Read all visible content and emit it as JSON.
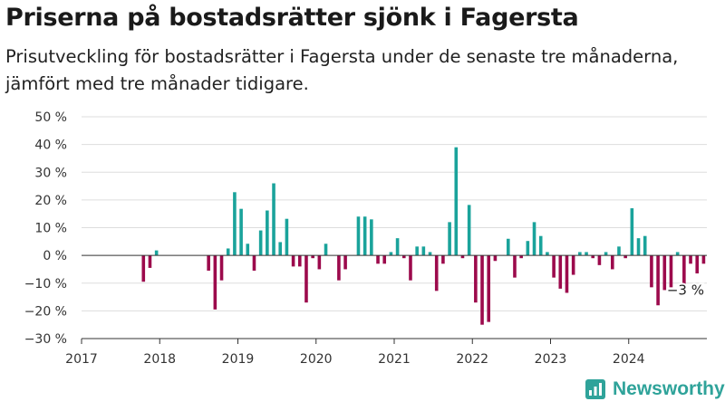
{
  "header": {
    "title": "Priserna på bostadsrätter sjönk i Fagersta",
    "subtitle": "Prisutveckling för bostadsrätter i Fagersta under de senaste tre månaderna, jämfört med tre månader tidigare."
  },
  "brand": {
    "name": "Newsworthy",
    "icon": "newsworthy-logo-icon"
  },
  "colors": {
    "positive": "#1aa39b",
    "negative": "#9c0a4c",
    "grid": "#dddddd",
    "axis": "#333333"
  },
  "chart_data": {
    "type": "bar",
    "title": "Priserna på bostadsrätter sjönk i Fagersta",
    "subtitle": "Prisutveckling för bostadsrätter i Fagersta under de senaste tre månaderna, jämfört med tre månader tidigare.",
    "xlabel": "",
    "ylabel": "",
    "ylim": [
      -30,
      50
    ],
    "xlim": [
      "2017-01",
      "2025-01"
    ],
    "y_ticks": [
      -30,
      -20,
      -10,
      0,
      10,
      20,
      30,
      40,
      50
    ],
    "y_tick_labels": [
      "−30 %",
      "−20 %",
      "−10 %",
      "0 %",
      "10 %",
      "20 %",
      "30 %",
      "40 %",
      "50 %"
    ],
    "x_tick_labels": [
      "2017",
      "2018",
      "2019",
      "2020",
      "2021",
      "2022",
      "2023",
      "2024"
    ],
    "grid": true,
    "legend": "none",
    "series": [
      {
        "x": [
          "2017-10",
          "2017-11",
          "2017-12",
          "2018-01",
          "2018-02",
          "2018-03",
          "2018-04",
          "2018-05",
          "2018-06",
          "2018-07",
          "2018-08",
          "2018-09",
          "2018-10",
          "2018-11",
          "2018-12",
          "2019-01",
          "2019-02",
          "2019-03",
          "2019-04",
          "2019-05",
          "2019-06",
          "2019-07",
          "2019-08",
          "2019-09",
          "2019-10",
          "2019-11",
          "2019-12",
          "2020-01",
          "2020-02",
          "2020-03",
          "2020-04",
          "2020-05",
          "2020-06",
          "2020-07",
          "2020-08",
          "2020-09",
          "2020-10",
          "2020-11",
          "2020-12",
          "2021-01",
          "2021-02",
          "2021-03",
          "2021-04",
          "2021-05",
          "2021-06",
          "2021-07",
          "2021-08",
          "2021-09",
          "2021-10",
          "2021-11",
          "2021-12",
          "2022-01",
          "2022-02",
          "2022-03",
          "2022-04",
          "2022-05",
          "2022-06",
          "2022-07",
          "2022-08",
          "2022-09",
          "2022-10",
          "2022-11",
          "2022-12",
          "2023-01",
          "2023-02",
          "2023-03",
          "2023-04",
          "2023-05",
          "2023-06",
          "2023-07",
          "2023-08",
          "2023-09",
          "2023-10",
          "2023-11",
          "2023-12",
          "2024-01",
          "2024-02",
          "2024-03",
          "2024-04",
          "2024-05",
          "2024-06",
          "2024-07",
          "2024-08",
          "2024-09",
          "2024-10",
          "2024-11",
          "2024-12"
        ],
        "values": [
          -9.5,
          -4.5,
          1.8,
          null,
          null,
          null,
          null,
          null,
          null,
          null,
          -5.5,
          -19.5,
          -9.0,
          2.5,
          22.8,
          16.8,
          4.2,
          -5.5,
          9.0,
          16.2,
          26.0,
          4.8,
          13.2,
          -4.0,
          -4.0,
          -17.0,
          -1.0,
          -5.0,
          4.2,
          null,
          -9.0,
          -5.0,
          null,
          14.0,
          14.0,
          13.0,
          -3.0,
          -3.0,
          1.2,
          6.2,
          -1.0,
          -9.0,
          3.2,
          3.2,
          1.2,
          -12.8,
          -3.0,
          12.0,
          39.0,
          -1.0,
          18.2,
          -17.0,
          -25.0,
          -24.0,
          -2.0,
          null,
          6.0,
          -8.0,
          -1.0,
          5.2,
          12.0,
          7.0,
          1.2,
          -8.0,
          -12.0,
          -13.5,
          -7.0,
          1.2,
          1.2,
          -1.0,
          -3.5,
          1.2,
          -5.0,
          3.2,
          -1.0,
          17.0,
          6.2,
          7.0,
          -11.5,
          -18.0,
          -12.5,
          -11.5,
          1.2,
          -11.0,
          -3.0,
          -6.5,
          -3.0
        ]
      }
    ],
    "annotations": [
      {
        "x": "2024-12",
        "value": -3,
        "text": "−3 %"
      }
    ]
  }
}
